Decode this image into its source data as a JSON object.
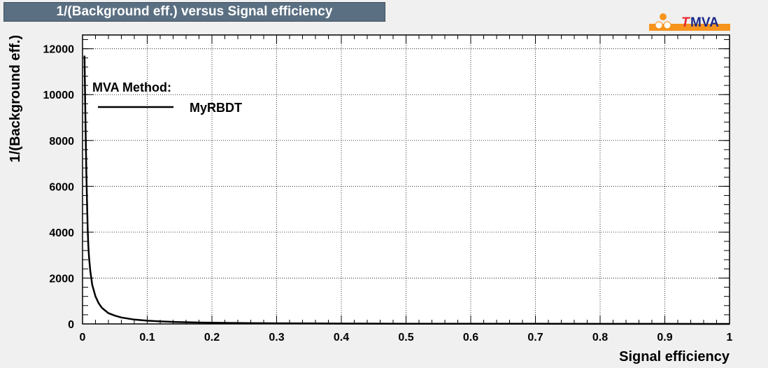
{
  "title": "1/(Background eff.) versus Signal efficiency",
  "logo": {
    "text_t": "T",
    "text_mva": "MVA",
    "accent": "#f7941d",
    "brand": "#1b2a8a",
    "red": "#e8262b"
  },
  "chart_data": {
    "type": "line",
    "xlabel": "Signal efficiency",
    "ylabel": "1/(Background eff.)",
    "xlim": [
      0,
      1
    ],
    "ylim": [
      0,
      12600
    ],
    "xticks": [
      0,
      0.1,
      0.2,
      0.3,
      0.4,
      0.5,
      0.6,
      0.7,
      0.8,
      0.9,
      1
    ],
    "xtick_labels": [
      "0",
      "0.1",
      "0.2",
      "0.3",
      "0.4",
      "0.5",
      "0.6",
      "0.7",
      "0.8",
      "0.9",
      "1"
    ],
    "yticks": [
      0,
      2000,
      4000,
      6000,
      8000,
      10000,
      12000
    ],
    "ytick_labels": [
      "0",
      "2000",
      "4000",
      "6000",
      "8000",
      "10000",
      "12000"
    ],
    "grid": true,
    "legend": {
      "header": "MVA Method:",
      "placement": "top-left"
    },
    "series": [
      {
        "name": "MyRBDT",
        "color": "#000000",
        "x": [
          0.003,
          0.004,
          0.005,
          0.006,
          0.007,
          0.008,
          0.009,
          0.01,
          0.012,
          0.015,
          0.02,
          0.025,
          0.03,
          0.04,
          0.05,
          0.06,
          0.08,
          0.1,
          0.12,
          0.15,
          0.18,
          0.22,
          0.26,
          0.3,
          0.35,
          0.4,
          0.5,
          0.6,
          0.7,
          0.8,
          0.9,
          1.0
        ],
        "y": [
          11700,
          9800,
          8100,
          6500,
          5200,
          4100,
          3400,
          2900,
          2300,
          1700,
          1200,
          900,
          700,
          470,
          360,
          280,
          190,
          140,
          110,
          80,
          60,
          45,
          35,
          28,
          20,
          15,
          10,
          7,
          5,
          3,
          2,
          1
        ]
      }
    ]
  }
}
